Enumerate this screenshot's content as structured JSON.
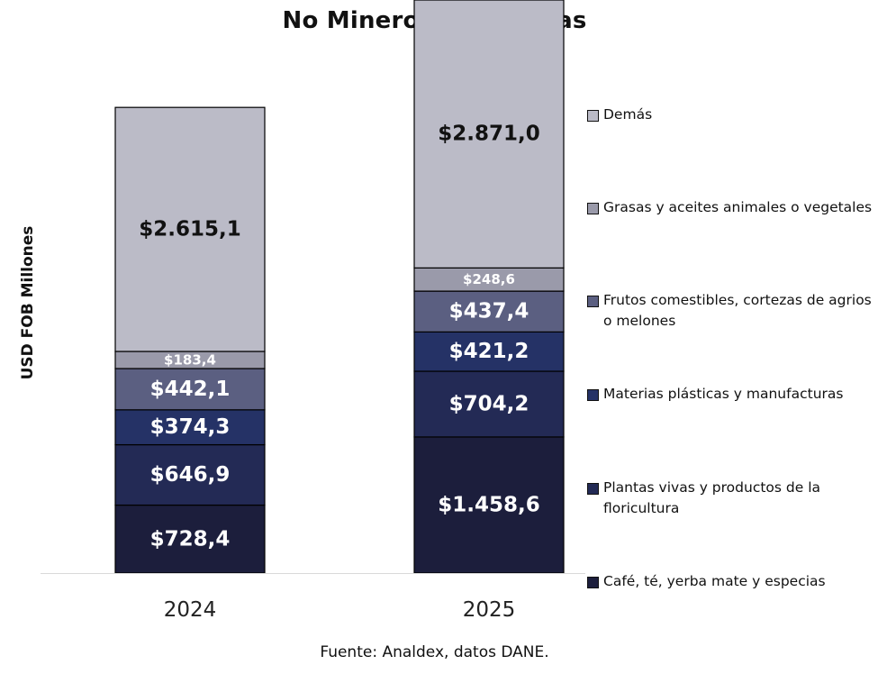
{
  "chart_data": {
    "type": "stacked-bar",
    "title": "No Minero-Energéticas",
    "ylabel": "USD FOB Millones",
    "xlabel": "",
    "source": "Fuente: Analdex, datos DANE.",
    "categories": [
      "2024",
      "2025"
    ],
    "ylim": [
      0,
      6141
    ],
    "grid": false,
    "legend_position": "right",
    "series": [
      {
        "name": "Café, té, yerba mate y especias",
        "color": "#1c1e3c",
        "values": [
          728.4,
          1458.6
        ],
        "labels": [
          "$728,4",
          "$1.458,6"
        ]
      },
      {
        "name": "Plantas vivas y productos de la floricultura",
        "color": "#232a55",
        "values": [
          646.9,
          704.2
        ],
        "labels": [
          "$646,9",
          "$704,2"
        ]
      },
      {
        "name": "Materias plásticas y manufacturas",
        "color": "#253266",
        "values": [
          374.3,
          421.2
        ],
        "labels": [
          "$374,3",
          "$421,2"
        ]
      },
      {
        "name": "Frutos comestibles, cortezas de agrios o melones",
        "color": "#5b5f81",
        "values": [
          442.1,
          437.4
        ],
        "labels": [
          "$442,1",
          "$437,4"
        ]
      },
      {
        "name": "Grasas y aceites animales o vegetales",
        "color": "#9a9aaa",
        "values": [
          183.4,
          248.6
        ],
        "labels": [
          "$183,4",
          "$248,6"
        ]
      },
      {
        "name": "Demás",
        "color": "#bbbbc7",
        "values": [
          2615.1,
          2871.0
        ],
        "labels": [
          "$2.615,1",
          "$2.871,0"
        ]
      }
    ]
  }
}
